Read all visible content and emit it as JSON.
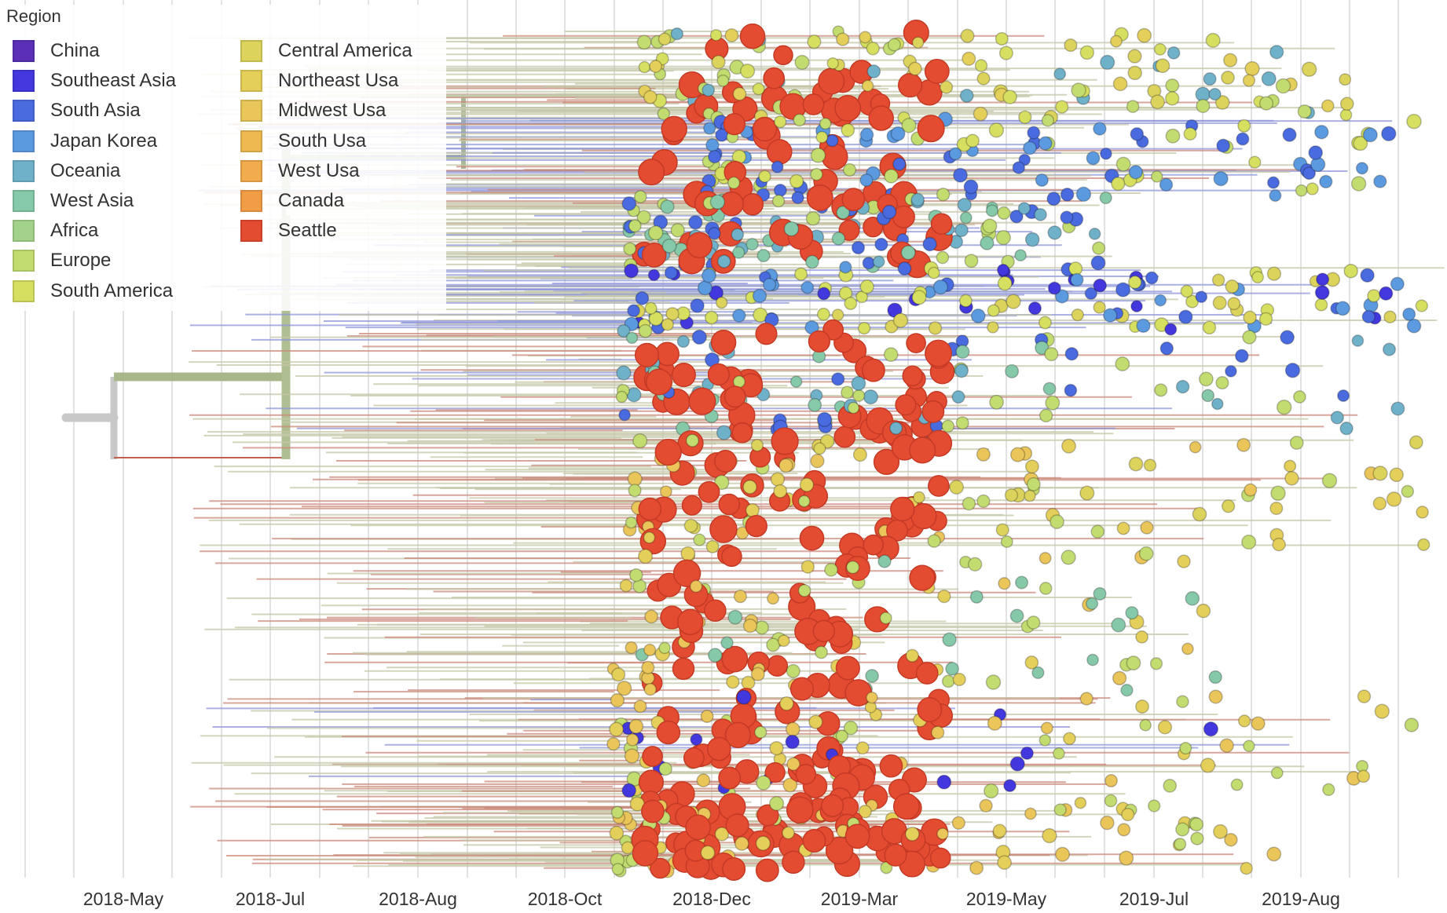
{
  "legend": {
    "title": "Region",
    "items": [
      {
        "label": "China",
        "color": "#5b2fb8"
      },
      {
        "label": "Southeast Asia",
        "color": "#4338dd"
      },
      {
        "label": "South Asia",
        "color": "#4a6be0"
      },
      {
        "label": "Japan Korea",
        "color": "#5c9ae0"
      },
      {
        "label": "Oceania",
        "color": "#6fb1c9"
      },
      {
        "label": "West Asia",
        "color": "#86c9a8"
      },
      {
        "label": "Africa",
        "color": "#a3d28a"
      },
      {
        "label": "Europe",
        "color": "#c3dc6f"
      },
      {
        "label": "South America",
        "color": "#d7df61"
      },
      {
        "label": "Central America",
        "color": "#dcd35c"
      },
      {
        "label": "Northeast Usa",
        "color": "#e4cf5a"
      },
      {
        "label": "Midwest Usa",
        "color": "#eac55a"
      },
      {
        "label": "South Usa",
        "color": "#efb952"
      },
      {
        "label": "West Usa",
        "color": "#f1ac4e"
      },
      {
        "label": "Canada",
        "color": "#f19d48"
      },
      {
        "label": "Seattle",
        "color": "#e44c32"
      }
    ]
  },
  "axis": {
    "ticks": [
      "2018-May",
      "2018-Jul",
      "2018-Aug",
      "2018-Oct",
      "2018-Dec",
      "2019-Mar",
      "2019-May",
      "2019-Jul",
      "2019-Aug"
    ]
  }
}
